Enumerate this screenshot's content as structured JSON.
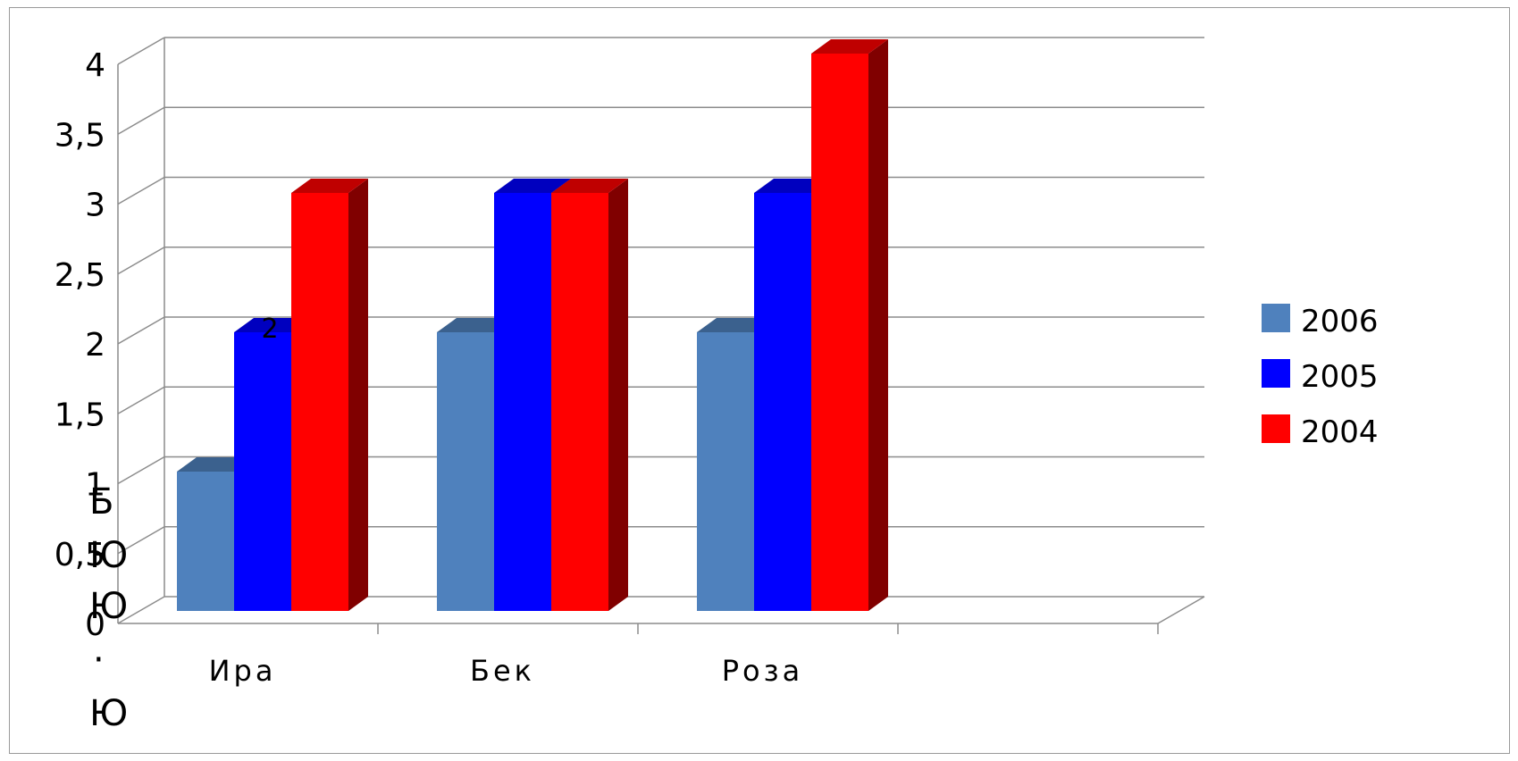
{
  "chart_data": {
    "type": "bar",
    "subtype": "3d-clustered-column",
    "categories": [
      "Ира",
      "Бек",
      "Роза"
    ],
    "series": [
      {
        "name": "2006",
        "values": [
          1,
          2,
          2
        ],
        "color": "#4f81bd"
      },
      {
        "name": "2005",
        "values": [
          2,
          3,
          3
        ],
        "color": "#0000ff"
      },
      {
        "name": "2004",
        "values": [
          3,
          3,
          4
        ],
        "color": "#ff0000"
      }
    ],
    "y_ticks": [
      "0",
      "0,5",
      "1",
      "1,5",
      "2",
      "2,5",
      "3",
      "3,5",
      "4"
    ],
    "ylim": [
      0,
      4
    ],
    "grid": true,
    "legend_position": "right",
    "data_labels": [
      {
        "series": 1,
        "category": 0,
        "text": "2"
      }
    ],
    "overlay_text": [
      "Б",
      "Ю",
      "Ю",
      "·",
      "Ю"
    ]
  }
}
